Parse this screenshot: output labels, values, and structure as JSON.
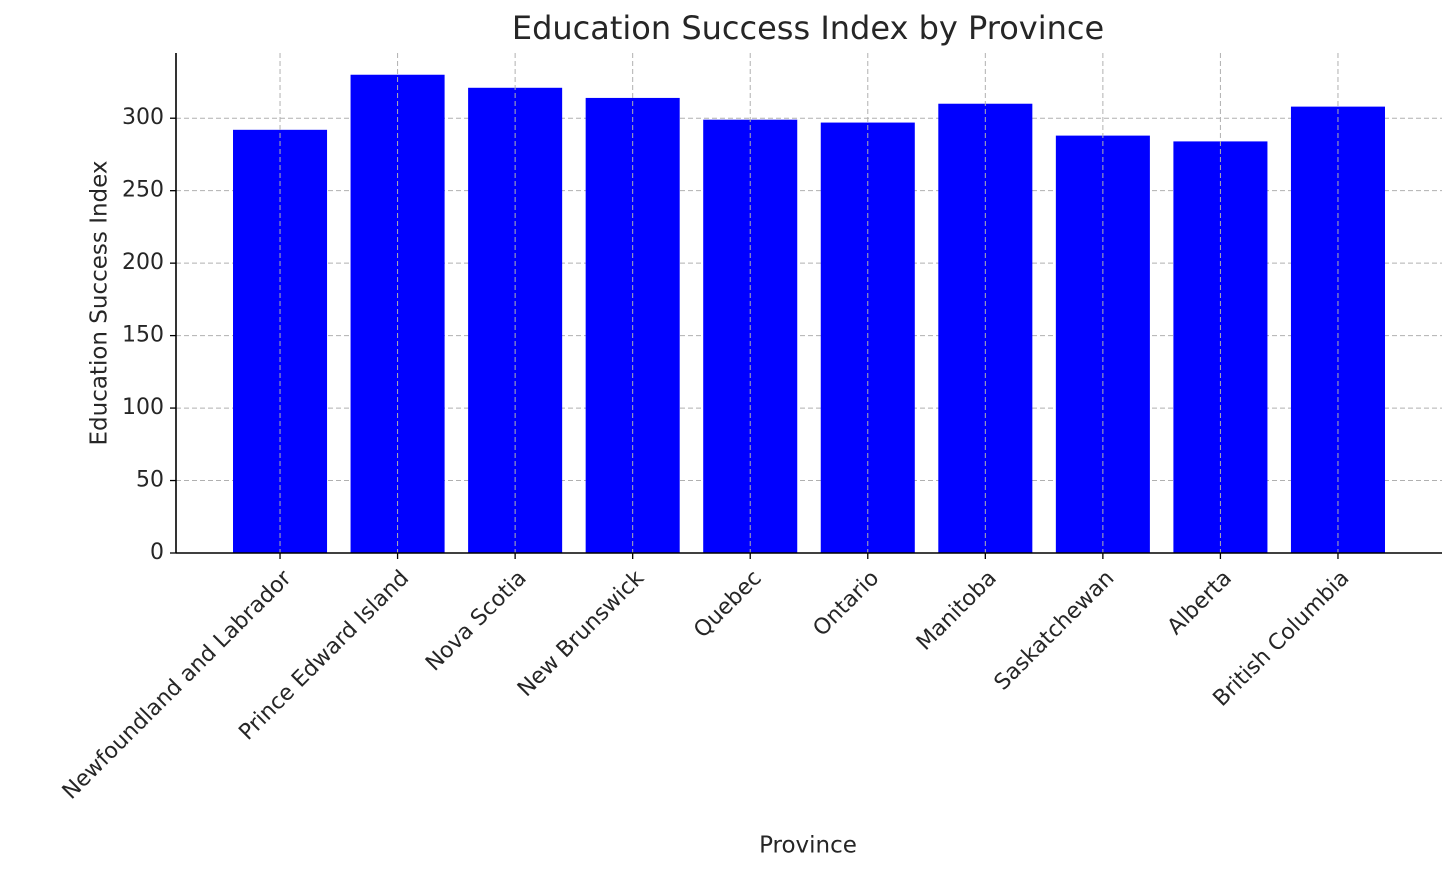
{
  "chart_data": {
    "type": "bar",
    "title": "Education Success Index by Province",
    "x_label": "Province",
    "y_label": "Education Success Index",
    "categories": [
      "Newfoundland and Labrador",
      "Prince Edward Island",
      "Nova Scotia",
      "New Brunswick",
      "Quebec",
      "Ontario",
      "Manitoba",
      "Saskatchewan",
      "Alberta",
      "British Columbia"
    ],
    "values": [
      292,
      330,
      321,
      314,
      299,
      297,
      310,
      288,
      284,
      308
    ],
    "color": "#0000ff",
    "ylim": [
      0,
      345
    ],
    "yticks": [
      0,
      50,
      100,
      150,
      200,
      250,
      300
    ],
    "grid": true
  }
}
